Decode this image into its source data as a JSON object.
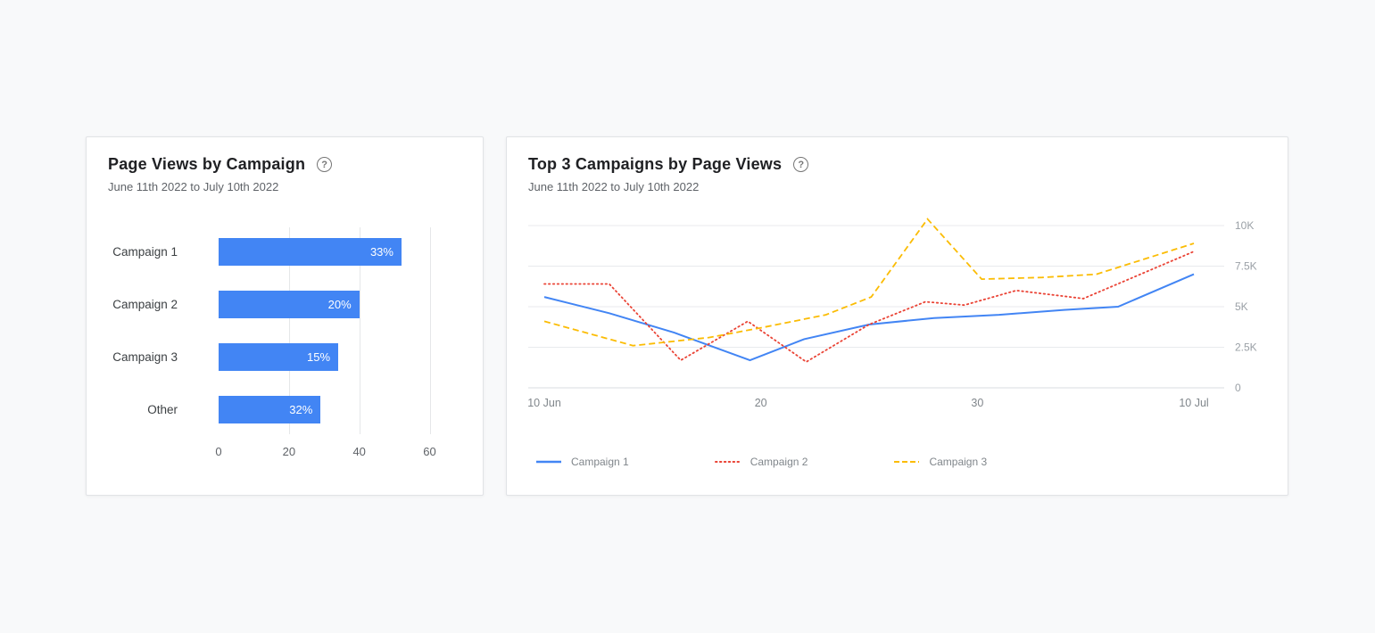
{
  "page": {
    "background": "#f8f9fa"
  },
  "cards": [
    {
      "title": "Page Views by Campaign",
      "subtitle": "June 11th 2022 to July 10th 2022",
      "help_glyph": "?"
    },
    {
      "title": "Top 3 Campaigns by Page Views",
      "subtitle": "June 11th 2022 to July 10th 2022",
      "help_glyph": "?"
    }
  ],
  "chart_data": [
    {
      "type": "bar",
      "orientation": "horizontal",
      "title": "Page Views by Campaign",
      "categories": [
        "Campaign 1",
        "Campaign 2",
        "Campaign 3",
        "Other"
      ],
      "values": [
        52,
        40,
        34,
        29
      ],
      "bar_labels": [
        "33%",
        "20%",
        "15%",
        "32%"
      ],
      "bar_color": "#4285f4",
      "xlim": [
        0,
        69
      ],
      "xticks": [
        0,
        20,
        40,
        60
      ],
      "grid": true,
      "legend_position": "none"
    },
    {
      "type": "line",
      "title": "Top 3 Campaigns by Page Views",
      "x_unit": "days since 10 Jun 2022",
      "xlim": [
        0,
        30
      ],
      "xticks": [
        {
          "x": 0,
          "label": "10 Jun"
        },
        {
          "x": 10,
          "label": "20"
        },
        {
          "x": 20,
          "label": "30"
        },
        {
          "x": 30,
          "label": "10 Jul"
        }
      ],
      "ylim": [
        0,
        10500
      ],
      "yticks": [
        {
          "v": 0,
          "label": "0"
        },
        {
          "v": 2500,
          "label": "2.5K"
        },
        {
          "v": 5000,
          "label": "5K"
        },
        {
          "v": 7500,
          "label": "7.5K"
        },
        {
          "v": 10000,
          "label": "10K"
        }
      ],
      "y_axis_side": "right",
      "grid": true,
      "legend_position": "bottom",
      "series": [
        {
          "name": "Campaign 1",
          "color": "#4285f4",
          "style": "solid",
          "points": [
            [
              0,
              5600
            ],
            [
              3,
              4600
            ],
            [
              6,
              3400
            ],
            [
              9.5,
              1700
            ],
            [
              12,
              3000
            ],
            [
              15,
              3900
            ],
            [
              18,
              4300
            ],
            [
              21,
              4500
            ],
            [
              24,
              4800
            ],
            [
              26.5,
              5000
            ],
            [
              30,
              7000
            ]
          ]
        },
        {
          "name": "Campaign 2",
          "color": "#ea4335",
          "style": "dotted",
          "points": [
            [
              0,
              6400
            ],
            [
              3,
              6400
            ],
            [
              6.3,
              1700
            ],
            [
              9.4,
              4100
            ],
            [
              12.1,
              1600
            ],
            [
              15,
              3900
            ],
            [
              17.6,
              5300
            ],
            [
              19.4,
              5100
            ],
            [
              21.8,
              6000
            ],
            [
              24.9,
              5500
            ],
            [
              30,
              8400
            ]
          ]
        },
        {
          "name": "Campaign 3",
          "color": "#fbbc04",
          "style": "dashed",
          "points": [
            [
              0,
              4100
            ],
            [
              4.1,
              2600
            ],
            [
              7.6,
              3100
            ],
            [
              10,
              3700
            ],
            [
              13,
              4500
            ],
            [
              15.1,
              5600
            ],
            [
              17.7,
              10400
            ],
            [
              20.2,
              6700
            ],
            [
              23,
              6800
            ],
            [
              25.5,
              7000
            ],
            [
              30,
              8900
            ]
          ]
        }
      ]
    }
  ]
}
